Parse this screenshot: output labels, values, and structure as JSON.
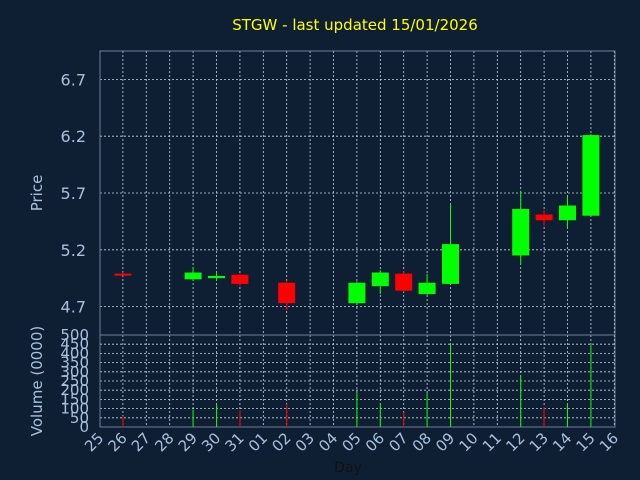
{
  "chart_data": {
    "type": "candlestick",
    "title": "STGW - last updated 15/01/2026",
    "xlabel": "Day",
    "ylabel": "Price",
    "volume_label": "Volume (0000)",
    "grid": true,
    "up_color": "#00ff00",
    "down_color": "#ff0000",
    "x_ticks": [
      "25",
      "26",
      "27",
      "28",
      "29",
      "30",
      "31",
      "01",
      "02",
      "03",
      "04",
      "05",
      "06",
      "07",
      "08",
      "09",
      "10",
      "11",
      "12",
      "13",
      "14",
      "15",
      "16"
    ],
    "price_ticks": [
      "6.7",
      "6.2",
      "5.7",
      "5.2",
      "4.7"
    ],
    "price_tick_values": [
      6.7,
      6.2,
      5.7,
      5.2,
      4.7
    ],
    "ylim": [
      4.45,
      6.95
    ],
    "volume_ticks": [
      "500",
      "450",
      "400",
      "350",
      "300",
      "250",
      "200",
      "150",
      "100",
      "50",
      "0"
    ],
    "volume_tick_values": [
      500,
      450,
      400,
      350,
      300,
      250,
      200,
      150,
      100,
      50,
      0
    ],
    "volume_ylim": [
      0,
      500
    ],
    "candles": [
      {
        "day": "26",
        "open": 4.99,
        "high": 5.0,
        "low": 4.98,
        "close": 4.98,
        "volume": 60
      },
      {
        "day": "29",
        "open": 4.94,
        "high": 5.05,
        "low": 4.93,
        "close": 5.0,
        "volume": 95
      },
      {
        "day": "30",
        "open": 4.95,
        "high": 5.0,
        "low": 4.93,
        "close": 4.97,
        "volume": 125
      },
      {
        "day": "31",
        "open": 4.98,
        "high": 4.99,
        "low": 4.88,
        "close": 4.9,
        "volume": 90
      },
      {
        "day": "02",
        "open": 4.91,
        "high": 4.93,
        "low": 4.67,
        "close": 4.73,
        "volume": 125
      },
      {
        "day": "05",
        "open": 4.73,
        "high": 4.92,
        "low": 4.72,
        "close": 4.91,
        "volume": 190
      },
      {
        "day": "06",
        "open": 4.88,
        "high": 5.02,
        "low": 4.81,
        "close": 5.0,
        "volume": 130
      },
      {
        "day": "07",
        "open": 4.99,
        "high": 5.01,
        "low": 4.83,
        "close": 4.84,
        "volume": 80
      },
      {
        "day": "08",
        "open": 4.81,
        "high": 4.99,
        "low": 4.8,
        "close": 4.91,
        "volume": 185
      },
      {
        "day": "09",
        "open": 4.9,
        "high": 5.6,
        "low": 4.9,
        "close": 5.25,
        "volume": 450
      },
      {
        "day": "12",
        "open": 5.15,
        "high": 5.72,
        "low": 5.07,
        "close": 5.56,
        "volume": 280
      },
      {
        "day": "13",
        "open": 5.51,
        "high": 5.55,
        "low": 5.41,
        "close": 5.46,
        "volume": 110
      },
      {
        "day": "14",
        "open": 5.46,
        "high": 5.67,
        "low": 5.39,
        "close": 5.59,
        "volume": 130
      },
      {
        "day": "15",
        "open": 5.5,
        "high": 6.22,
        "low": 5.5,
        "close": 6.21,
        "volume": 450
      }
    ]
  }
}
